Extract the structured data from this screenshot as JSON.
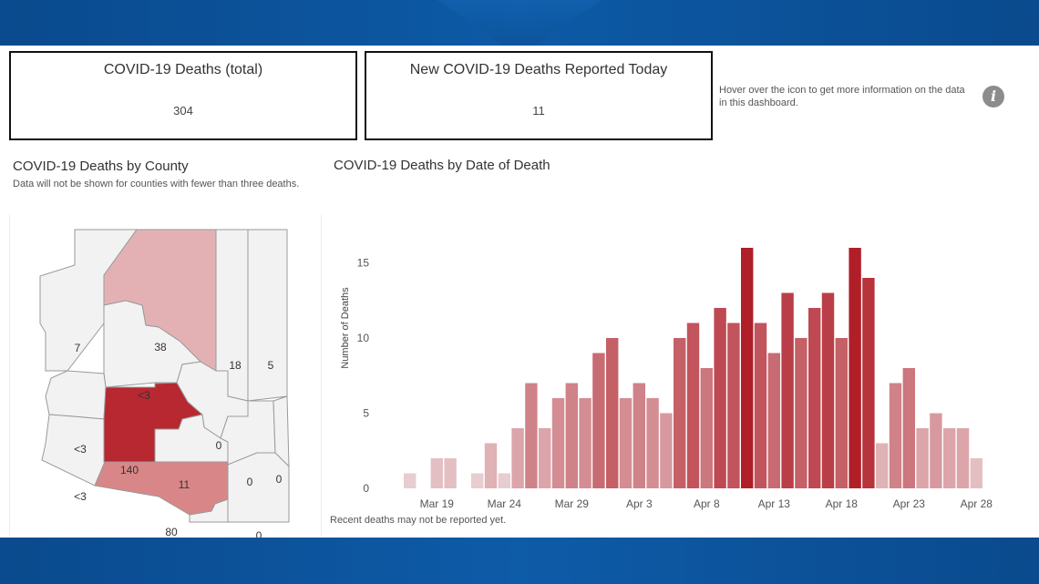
{
  "kpis": {
    "total": {
      "title": "COVID-19 Deaths (total)",
      "value": "304"
    },
    "today": {
      "title": "New COVID-19 Deaths Reported Today",
      "value": "11"
    }
  },
  "info": {
    "text": "Hover over the icon to get more information on the data in this dashboard.",
    "icon": "info-icon",
    "glyph": "i"
  },
  "map": {
    "title": "COVID-19 Deaths by County",
    "note": "Data will not be shown for counties with fewer than three deaths.",
    "counties": [
      {
        "key": "mohave",
        "label": "7"
      },
      {
        "key": "coconino",
        "label": "38"
      },
      {
        "key": "navajo",
        "label": "18"
      },
      {
        "key": "apache",
        "label": "5"
      },
      {
        "key": "yavapai",
        "label": "<3"
      },
      {
        "key": "la_paz",
        "label": "<3"
      },
      {
        "key": "yuma",
        "label": "<3"
      },
      {
        "key": "maricopa",
        "label": "140"
      },
      {
        "key": "gila",
        "label": "0"
      },
      {
        "key": "pinal",
        "label": "11"
      },
      {
        "key": "graham",
        "label": "0"
      },
      {
        "key": "greenlee",
        "label": "0"
      },
      {
        "key": "pima",
        "label": "80"
      },
      {
        "key": "santa_cruz",
        "label": "0"
      },
      {
        "key": "cochise",
        "label": "0"
      }
    ]
  },
  "chart_data": {
    "type": "bar",
    "title": "COVID-19 Deaths by Date of Death",
    "ylabel": "Number of Deaths",
    "xlabel": "",
    "x_ticks": [
      "Mar 19",
      "Mar 24",
      "Mar 29",
      "Apr 3",
      "Apr 8",
      "Apr 13",
      "Apr 18",
      "Apr 23",
      "Apr 28"
    ],
    "y_ticks": [
      "0",
      "5",
      "10",
      "15"
    ],
    "ylim": [
      0,
      16
    ],
    "grid": false,
    "color_scale": [
      "#ecdcdf",
      "#b01e28"
    ],
    "x": [
      "Mar 17",
      "Mar 18",
      "Mar 19",
      "Mar 20",
      "Mar 21",
      "Mar 22",
      "Mar 23",
      "Mar 24",
      "Mar 25",
      "Mar 26",
      "Mar 27",
      "Mar 28",
      "Mar 29",
      "Mar 30",
      "Mar 31",
      "Apr 1",
      "Apr 2",
      "Apr 3",
      "Apr 4",
      "Apr 5",
      "Apr 6",
      "Apr 7",
      "Apr 8",
      "Apr 9",
      "Apr 10",
      "Apr 11",
      "Apr 12",
      "Apr 13",
      "Apr 14",
      "Apr 15",
      "Apr 16",
      "Apr 17",
      "Apr 18",
      "Apr 19",
      "Apr 20",
      "Apr 21",
      "Apr 22",
      "Apr 23",
      "Apr 24",
      "Apr 25",
      "Apr 26",
      "Apr 27",
      "Apr 28"
    ],
    "values": [
      1,
      0,
      2,
      2,
      0,
      1,
      3,
      1,
      4,
      7,
      4,
      6,
      7,
      6,
      9,
      10,
      6,
      7,
      6,
      5,
      10,
      11,
      8,
      12,
      11,
      16,
      11,
      9,
      13,
      10,
      12,
      13,
      10,
      16,
      14,
      3,
      7,
      8,
      4,
      5,
      4,
      4,
      2
    ],
    "footnote": "Recent deaths may not be reported yet."
  }
}
